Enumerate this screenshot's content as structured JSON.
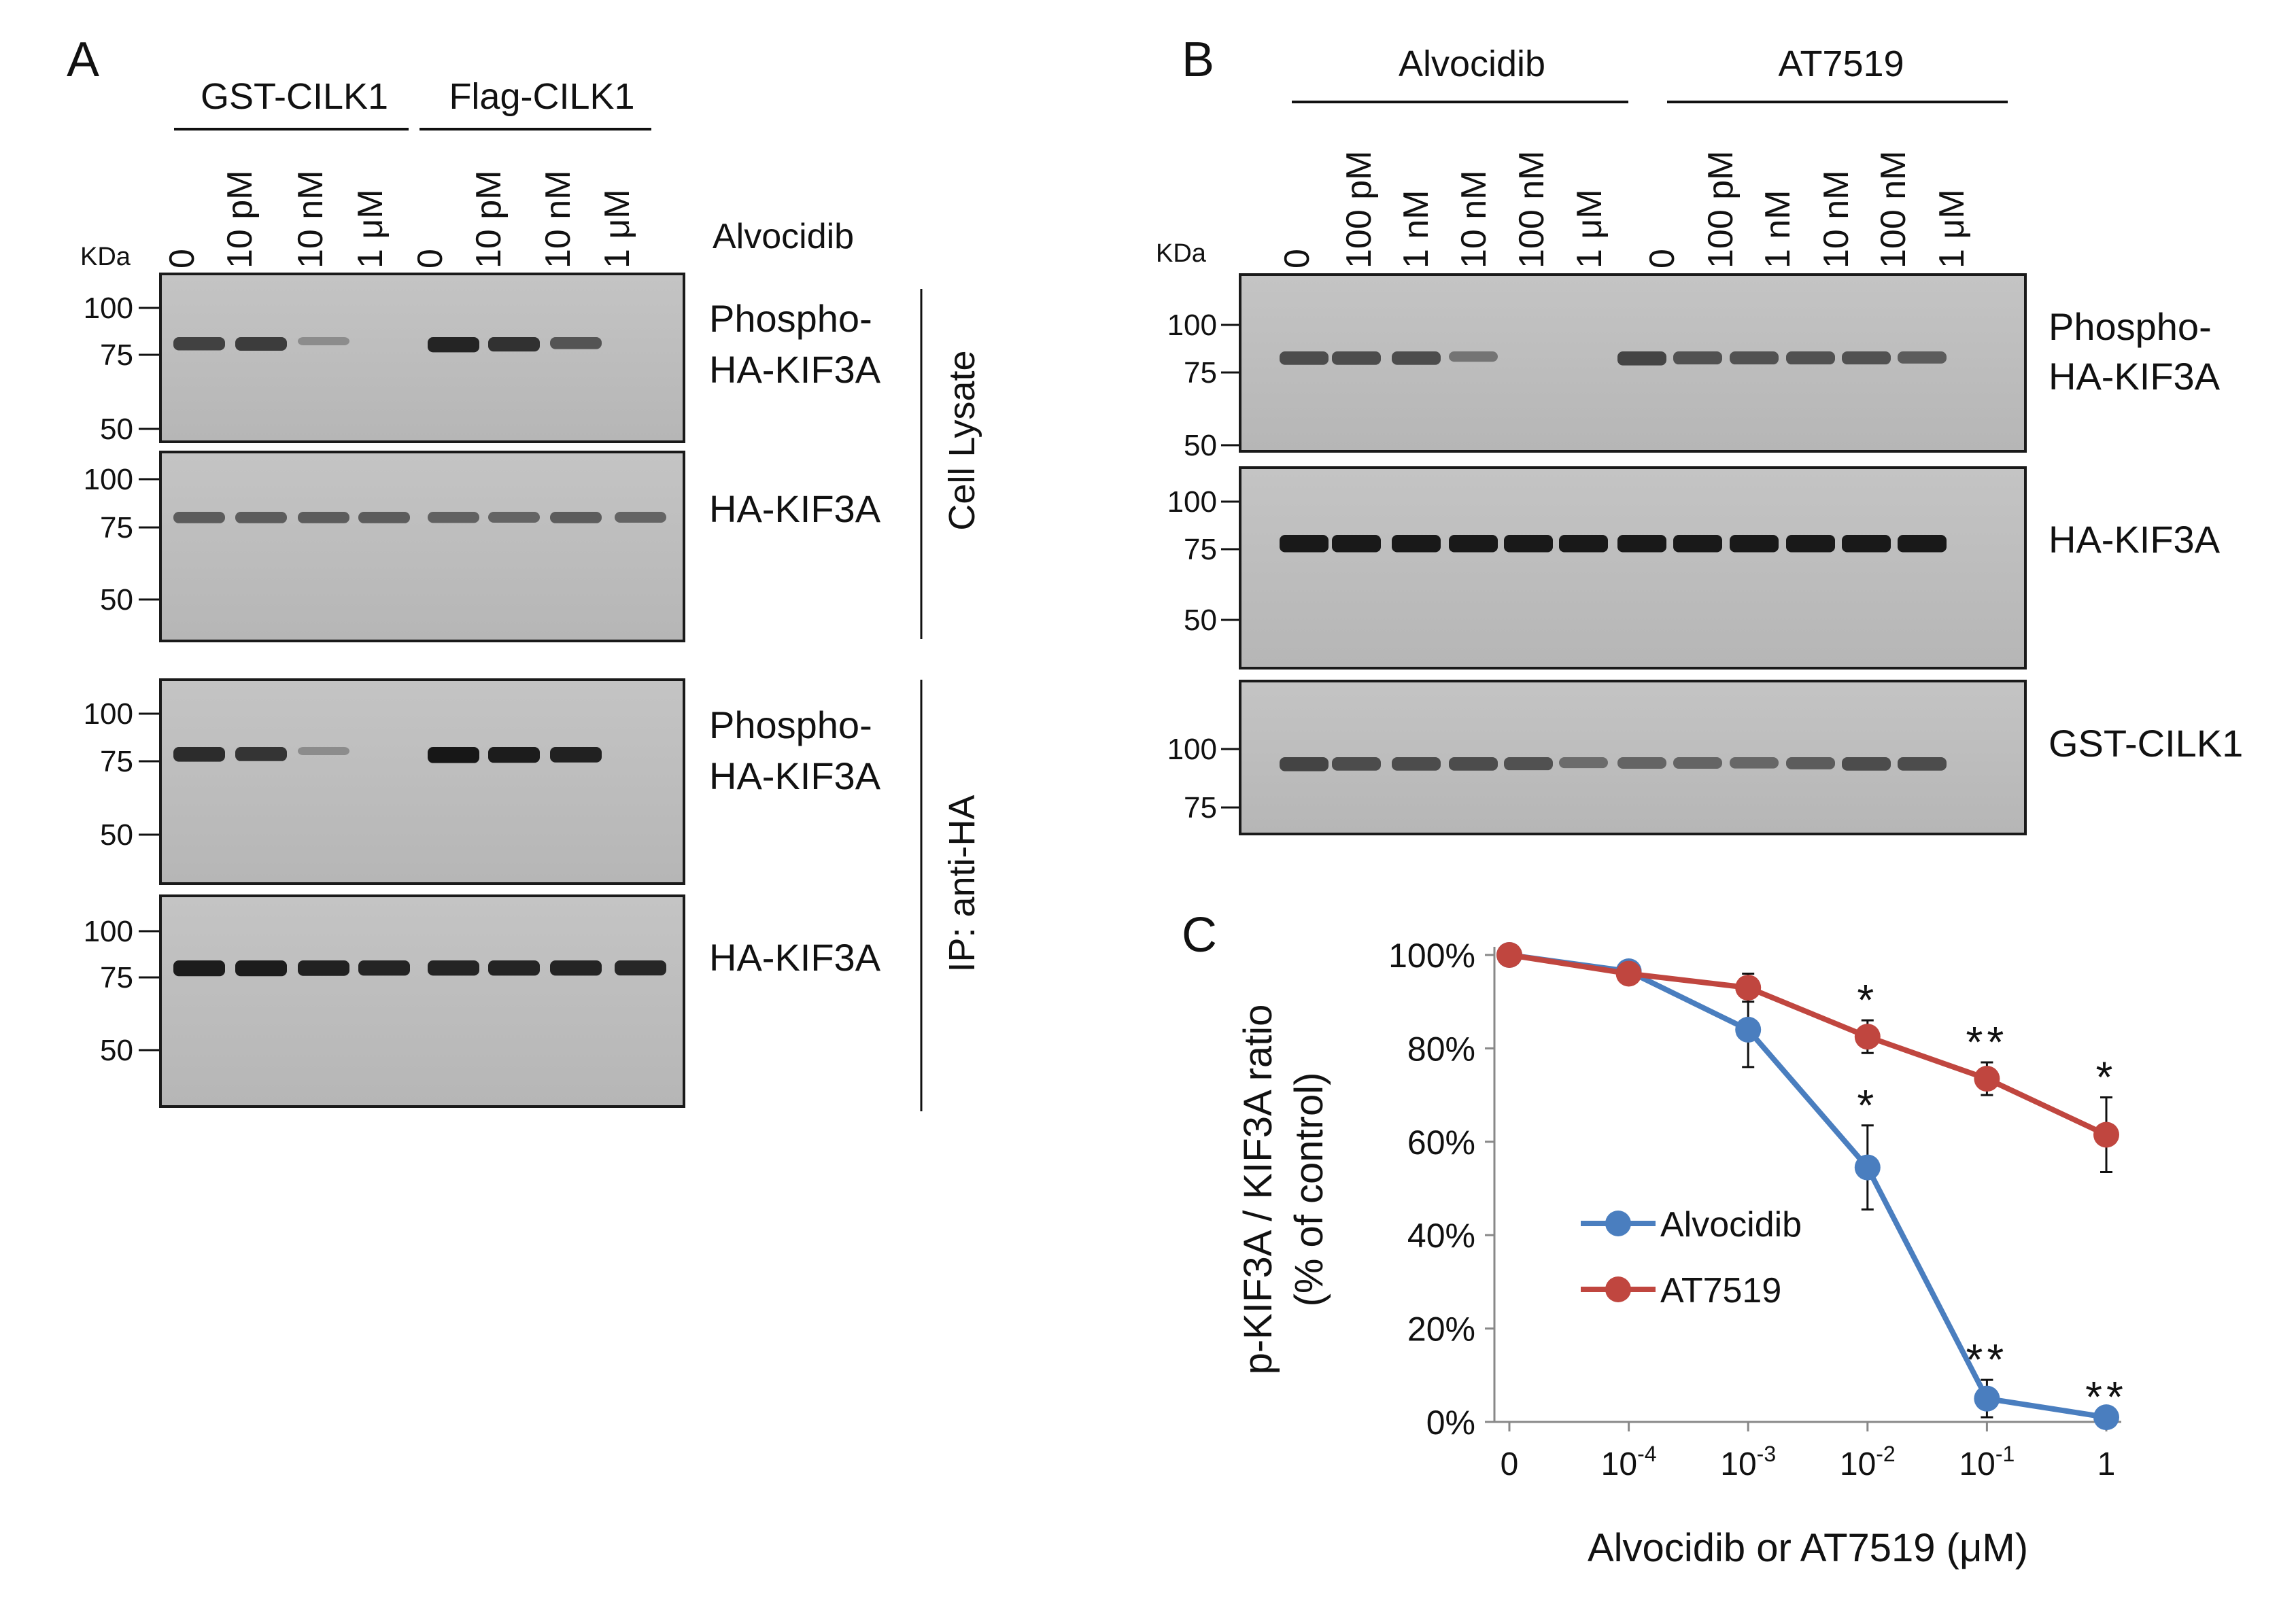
{
  "panel_a": {
    "letter": "A",
    "groups": [
      "GST-CILK1",
      "Flag-CILK1"
    ],
    "lanes": [
      "0",
      "10 pM",
      "10 nM",
      "1 μM",
      "0",
      "10 pM",
      "10 nM",
      "1 μM"
    ],
    "drug_label": "Alvocidib",
    "kda_label": "KDa",
    "blots": [
      {
        "label": [
          "Phospho-",
          "HA-KIF3A"
        ],
        "markers": [
          "100",
          "75",
          "50"
        ],
        "band_intensity": [
          0.72,
          0.75,
          0.25,
          0.0,
          0.9,
          0.82,
          0.6,
          0.0
        ]
      },
      {
        "label": [
          "HA-KIF3A"
        ],
        "markers": [
          "100",
          "75",
          "50"
        ],
        "band_intensity": [
          0.55,
          0.55,
          0.55,
          0.55,
          0.52,
          0.5,
          0.55,
          0.5
        ]
      },
      {
        "label": [
          "Phospho-",
          "HA-KIF3A"
        ],
        "markers": [
          "100",
          "75",
          "50"
        ],
        "band_intensity": [
          0.85,
          0.8,
          0.25,
          0.0,
          0.98,
          0.95,
          0.92,
          0.0
        ]
      },
      {
        "label": [
          "HA-KIF3A"
        ],
        "markers": [
          "100",
          "75",
          "50"
        ],
        "band_intensity": [
          0.95,
          0.95,
          0.92,
          0.9,
          0.9,
          0.9,
          0.9,
          0.88
        ]
      }
    ],
    "side_labels": [
      "Cell Lysate",
      "IP: anti-HA"
    ]
  },
  "panel_b": {
    "letter": "B",
    "groups": [
      "Alvocidib",
      "AT7519"
    ],
    "lanes": [
      "0",
      "100 pM",
      "1 nM",
      "10 nM",
      "100 nM",
      "1 μM",
      "0",
      "100 pM",
      "1 nM",
      "10 nM",
      "100 nM",
      "1 μM"
    ],
    "kda_label": "KDa",
    "blots": [
      {
        "label": [
          "Phospho-",
          "HA-KIF3A"
        ],
        "markers": [
          "100",
          "75",
          "50"
        ],
        "band_intensity": [
          0.65,
          0.65,
          0.65,
          0.4,
          0.0,
          0.0,
          0.7,
          0.62,
          0.62,
          0.62,
          0.62,
          0.55
        ]
      },
      {
        "label": [
          "HA-KIF3A"
        ],
        "markers": [
          "100",
          "75",
          "50"
        ],
        "band_intensity": [
          0.97,
          0.97,
          0.97,
          0.97,
          0.97,
          0.97,
          0.97,
          0.97,
          0.97,
          0.97,
          0.97,
          0.97
        ]
      },
      {
        "label": [
          "GST-CILK1"
        ],
        "markers": [
          "100",
          "75"
        ],
        "band_intensity": [
          0.7,
          0.65,
          0.65,
          0.65,
          0.62,
          0.45,
          0.5,
          0.5,
          0.48,
          0.55,
          0.65,
          0.65
        ]
      }
    ]
  },
  "panel_c": {
    "letter": "C",
    "chart_data": {
      "type": "line",
      "x": [
        "0",
        "10^-4",
        "10^-3",
        "10^-2",
        "10^-1",
        "1"
      ],
      "x_tick_labels": [
        {
          "base": "0",
          "exp": ""
        },
        {
          "base": "10",
          "exp": "-4"
        },
        {
          "base": "10",
          "exp": "-3"
        },
        {
          "base": "10",
          "exp": "-2"
        },
        {
          "base": "10",
          "exp": "-1"
        },
        {
          "base": "1",
          "exp": ""
        }
      ],
      "y_ticks": [
        "0%",
        "20%",
        "40%",
        "60%",
        "80%",
        "100%"
      ],
      "ylim": [
        0,
        100
      ],
      "xlabel": "Alvocidib or AT7519 (μM)",
      "ylabel": [
        "p-KIF3A / KIF3A ratio",
        "(% of control)"
      ],
      "series": [
        {
          "name": "Alvocidib",
          "color": "#4a7ebf",
          "values": [
            100,
            96.5,
            84,
            54.5,
            5,
            1
          ],
          "errors": [
            0,
            0,
            8,
            9,
            4,
            0
          ],
          "sig": [
            "",
            "",
            "",
            "*",
            "**",
            "**"
          ]
        },
        {
          "name": "AT7519",
          "color": "#c0463f",
          "values": [
            100,
            96,
            93,
            82.5,
            73.5,
            61.5
          ],
          "errors": [
            0,
            0,
            3,
            3.5,
            3.5,
            8
          ],
          "sig": [
            "",
            "",
            "",
            "*",
            "**",
            "*"
          ]
        }
      ],
      "legend_position": "center-left"
    }
  }
}
